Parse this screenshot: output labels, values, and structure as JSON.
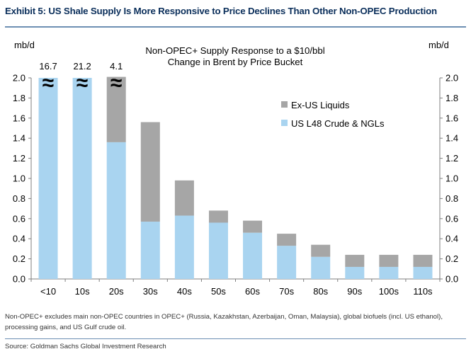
{
  "exhibit_title": "Exhibit 5: US Shale Supply Is More Responsive to Price Declines Than Other Non-OPEC Production",
  "footnote": "Non-OPEC+ excludes main non-OPEC countries in OPEC+ (Russia, Kazakhstan, Azerbaijan, Oman, Malaysia), global biofuels (incl. US ethanol), processing gains, and US Gulf crude oil.",
  "source": "Source: Goldman Sachs Global Investment Research",
  "chart_data": {
    "type": "bar",
    "stacked": true,
    "title": "Non-OPEC+ Supply Response to a $10/bbl Change in Brent by Price Bucket",
    "title_lines": [
      "Non-OPEC+ Supply Response to a $10/bbl",
      "Change in Brent by Price Bucket"
    ],
    "ylabel_left": "mb/d",
    "ylabel_right": "mb/d",
    "ylim": [
      0,
      2.0
    ],
    "yticks": [
      "0.0",
      "0.2",
      "0.4",
      "0.6",
      "0.8",
      "1.0",
      "1.2",
      "1.4",
      "1.6",
      "1.8",
      "2.0"
    ],
    "categories": [
      "<10",
      "10s",
      "20s",
      "30s",
      "40s",
      "50s",
      "60s",
      "70s",
      "80s",
      "90s",
      "100s",
      "110s"
    ],
    "series": [
      {
        "name": "US L48 Crude & NGLs",
        "color": "#a9d4f0",
        "values": [
          2.0,
          2.0,
          1.36,
          0.57,
          0.63,
          0.56,
          0.46,
          0.33,
          0.22,
          0.12,
          0.12,
          0.12
        ]
      },
      {
        "name": "Ex-US Liquids",
        "color": "#a6a6a6",
        "values": [
          0.0,
          0.0,
          0.65,
          0.99,
          0.35,
          0.12,
          0.12,
          0.12,
          0.12,
          0.12,
          0.12,
          0.12
        ]
      }
    ],
    "legend_order": [
      "Ex-US Liquids",
      "US L48 Crude & NGLs"
    ],
    "legend_position": "top-right",
    "broken_bars": [
      {
        "category": "<10",
        "label": "16.7",
        "break_symbol": "≈"
      },
      {
        "category": "10s",
        "label": "21.2",
        "break_symbol": "≈"
      },
      {
        "category": "20s",
        "label": "4.1",
        "break_symbol": "≈"
      }
    ],
    "grid": false
  }
}
